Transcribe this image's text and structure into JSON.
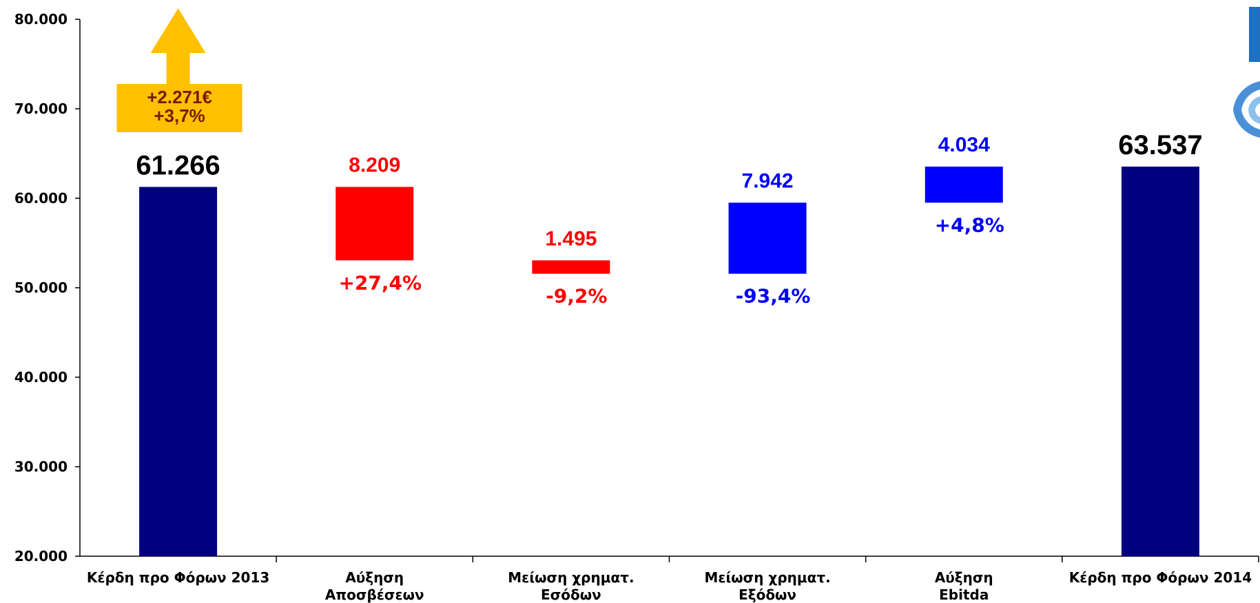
{
  "chart_data": {
    "type": "waterfall",
    "ylim": [
      20000,
      80000
    ],
    "yticks": [
      20000,
      30000,
      40000,
      50000,
      60000,
      70000,
      80000
    ],
    "ytick_labels": [
      "20.000",
      "30.000",
      "40.000",
      "50.000",
      "60.000",
      "70.000",
      "80.000"
    ],
    "categories": [
      {
        "line1": "Κέρδη προ Φόρων 2013",
        "line2": ""
      },
      {
        "line1": "Αύξηση",
        "line2": "Αποσβέσεων"
      },
      {
        "line1": "Μείωση χρηματ.",
        "line2": "Εσόδων"
      },
      {
        "line1": "Μείωση χρηματ.",
        "line2": "Εξόδων"
      },
      {
        "line1": "Αύξηση",
        "line2": "Ebitda"
      },
      {
        "line1": "Κέρδη προ Φόρων 2014",
        "line2": ""
      }
    ],
    "bars": [
      {
        "kind": "total",
        "start": 20000,
        "end": 61266,
        "label": "61.266",
        "pct": "",
        "color": "#000080",
        "label_color": "#000000"
      },
      {
        "kind": "decrease",
        "start": 61266,
        "end": 53057,
        "label": "8.209",
        "pct": "+27,4%",
        "color": "#ff0000",
        "label_color": "#ff0000"
      },
      {
        "kind": "decrease",
        "start": 53057,
        "end": 51562,
        "label": "1.495",
        "pct": "-9,2%",
        "color": "#ff0000",
        "label_color": "#ff0000"
      },
      {
        "kind": "increase",
        "start": 51562,
        "end": 59504,
        "label": "7.942",
        "pct": "-93,4%",
        "color": "#0000ff",
        "label_color": "#0000ff"
      },
      {
        "kind": "increase",
        "start": 59504,
        "end": 63538,
        "label": "4.034",
        "pct": "+4,8%",
        "color": "#0000ff",
        "label_color": "#0000ff"
      },
      {
        "kind": "total",
        "start": 20000,
        "end": 63537,
        "label": "63.537",
        "pct": "",
        "color": "#000080",
        "label_color": "#000000"
      }
    ],
    "callout": {
      "line1": "+2.271€",
      "line2": "+3,7%",
      "color": "#ffc000"
    },
    "grid": false,
    "legend": "none"
  }
}
